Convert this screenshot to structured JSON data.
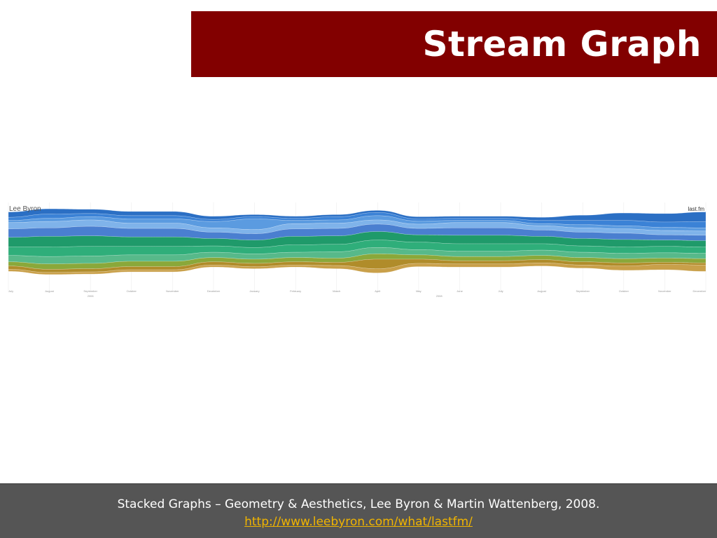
{
  "slide": {
    "title": "Stream Graph",
    "citation": "Stacked Graphs – Geometry & Aesthetics, Lee Byron & Martin Wattenberg, 2008.",
    "link": "http://www.leebyron.com/what/lastfm/"
  },
  "colors": {
    "title_bar": "#820000",
    "footer_bg": "#555555",
    "link": "#f0b400",
    "stream_palette": [
      "#2b6fc4",
      "#3b82d6",
      "#5b9be0",
      "#7fb3ea",
      "#4a7fd0",
      "#1f9a6a",
      "#2fae7a",
      "#57b98a",
      "#8aa83a",
      "#b08c2a",
      "#c9a04a"
    ]
  },
  "chart_data": {
    "type": "area",
    "subtype": "streamgraph",
    "author_label": "Lee Byron",
    "brand_label": "last.fm",
    "x": [
      "July",
      "August",
      "September",
      "October",
      "November",
      "December",
      "January",
      "February",
      "March",
      "April",
      "May",
      "June",
      "July",
      "August",
      "September",
      "October",
      "November",
      "December"
    ],
    "year_labels": [
      "2006",
      "2008"
    ],
    "series": [
      {
        "values": [
          5,
          5,
          4,
          4,
          4,
          3,
          2,
          2,
          2,
          2,
          2,
          2,
          2,
          3,
          5,
          7,
          8,
          9
        ]
      },
      {
        "values": [
          3,
          4,
          3,
          3,
          3,
          2,
          2,
          2,
          3,
          3,
          2,
          2,
          2,
          3,
          4,
          5,
          5,
          6
        ]
      },
      {
        "values": [
          2,
          3,
          3,
          4,
          4,
          6,
          10,
          3,
          3,
          4,
          3,
          2,
          2,
          2,
          3,
          3,
          3,
          3
        ]
      },
      {
        "values": [
          6,
          6,
          6,
          5,
          5,
          4,
          4,
          5,
          5,
          4,
          4,
          5,
          5,
          4,
          4,
          4,
          4,
          4
        ]
      },
      {
        "values": [
          8,
          8,
          9,
          8,
          8,
          6,
          6,
          7,
          7,
          7,
          6,
          7,
          7,
          6,
          6,
          6,
          5,
          5
        ]
      },
      {
        "values": [
          9,
          10,
          10,
          9,
          9,
          7,
          7,
          8,
          8,
          8,
          7,
          8,
          8,
          7,
          7,
          7,
          6,
          6
        ]
      },
      {
        "values": [
          8,
          9,
          9,
          8,
          8,
          6,
          6,
          7,
          7,
          7,
          7,
          7,
          7,
          6,
          6,
          6,
          6,
          6
        ]
      },
      {
        "values": [
          6,
          7,
          7,
          6,
          6,
          5,
          5,
          5,
          6,
          6,
          5,
          5,
          5,
          5,
          5,
          5,
          5,
          5
        ]
      },
      {
        "values": [
          4,
          5,
          5,
          5,
          5,
          4,
          4,
          4,
          4,
          5,
          4,
          4,
          4,
          4,
          4,
          4,
          4,
          4
        ]
      },
      {
        "values": [
          3,
          3,
          3,
          3,
          3,
          3,
          3,
          3,
          3,
          9,
          4,
          3,
          3,
          3,
          3,
          3,
          2,
          2
        ]
      },
      {
        "values": [
          2,
          2,
          2,
          2,
          2,
          2,
          2,
          2,
          3,
          4,
          3,
          3,
          3,
          3,
          3,
          4,
          5,
          6
        ]
      }
    ]
  }
}
